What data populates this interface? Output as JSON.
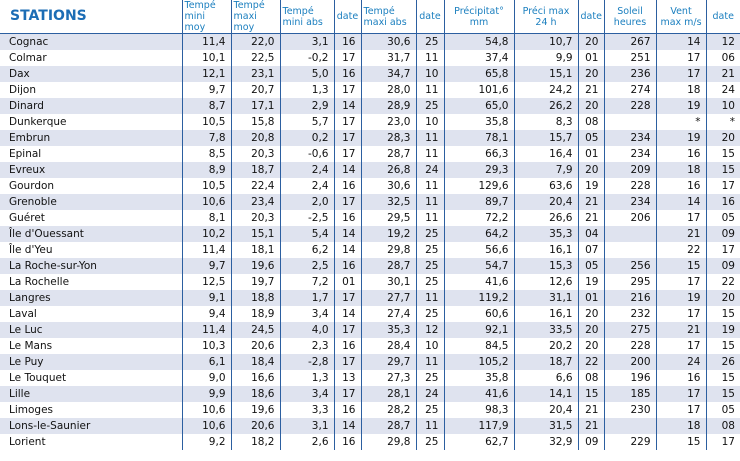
{
  "table": {
    "headers": [
      "STATIONS",
      "Tempé mini moy",
      "Tempé maxi moy",
      "Tempé mini abs",
      "date",
      "Tempé maxi abs",
      "date",
      "Précipitat° mm",
      "Préci max 24 h",
      "date",
      "Soleil heures",
      "Vent max m/s",
      "date"
    ],
    "rows": [
      [
        "Cognac",
        "11,4",
        "22,0",
        "3,1",
        "16",
        "30,6",
        "25",
        "54,8",
        "10,7",
        "20",
        "267",
        "14",
        "12"
      ],
      [
        "Colmar",
        "10,1",
        "22,5",
        "-0,2",
        "17",
        "31,7",
        "11",
        "37,4",
        "9,9",
        "01",
        "251",
        "17",
        "06"
      ],
      [
        "Dax",
        "12,1",
        "23,1",
        "5,0",
        "16",
        "34,7",
        "10",
        "65,8",
        "15,1",
        "20",
        "236",
        "17",
        "21"
      ],
      [
        "Dijon",
        "9,7",
        "20,7",
        "1,3",
        "17",
        "28,0",
        "11",
        "101,6",
        "24,2",
        "21",
        "274",
        "18",
        "24"
      ],
      [
        "Dinard",
        "8,7",
        "17,1",
        "2,9",
        "14",
        "28,9",
        "25",
        "65,0",
        "26,2",
        "20",
        "228",
        "19",
        "10"
      ],
      [
        "Dunkerque",
        "10,5",
        "15,8",
        "5,7",
        "17",
        "23,0",
        "10",
        "35,8",
        "8,3",
        "08",
        "",
        "*",
        "*"
      ],
      [
        "Embrun",
        "7,8",
        "20,8",
        "0,2",
        "17",
        "28,3",
        "11",
        "78,1",
        "15,7",
        "05",
        "234",
        "19",
        "20"
      ],
      [
        "Epinal",
        "8,5",
        "20,3",
        "-0,6",
        "17",
        "28,7",
        "11",
        "66,3",
        "16,4",
        "01",
        "234",
        "16",
        "15"
      ],
      [
        "Evreux",
        "8,9",
        "18,7",
        "2,4",
        "14",
        "26,8",
        "24",
        "29,3",
        "7,9",
        "20",
        "209",
        "18",
        "15"
      ],
      [
        "Gourdon",
        "10,5",
        "22,4",
        "2,4",
        "16",
        "30,6",
        "11",
        "129,6",
        "63,6",
        "19",
        "228",
        "16",
        "17"
      ],
      [
        "Grenoble",
        "10,6",
        "23,4",
        "2,0",
        "17",
        "32,5",
        "11",
        "89,7",
        "20,4",
        "21",
        "234",
        "14",
        "16"
      ],
      [
        "Guéret",
        "8,1",
        "20,3",
        "-2,5",
        "16",
        "29,5",
        "11",
        "72,2",
        "26,6",
        "21",
        "206",
        "17",
        "05"
      ],
      [
        "Île d'Ouessant",
        "10,2",
        "15,1",
        "5,4",
        "14",
        "19,2",
        "25",
        "64,2",
        "35,3",
        "04",
        "",
        "21",
        "09"
      ],
      [
        "Île d'Yeu",
        "11,4",
        "18,1",
        "6,2",
        "14",
        "29,8",
        "25",
        "56,6",
        "16,1",
        "07",
        "",
        "22",
        "17"
      ],
      [
        "La Roche-sur-Yon",
        "9,7",
        "19,6",
        "2,5",
        "16",
        "28,7",
        "25",
        "54,7",
        "15,3",
        "05",
        "256",
        "15",
        "09"
      ],
      [
        "La Rochelle",
        "12,5",
        "19,7",
        "7,2",
        "01",
        "30,1",
        "25",
        "41,6",
        "12,6",
        "19",
        "295",
        "17",
        "22"
      ],
      [
        "Langres",
        "9,1",
        "18,8",
        "1,7",
        "17",
        "27,7",
        "11",
        "119,2",
        "31,1",
        "01",
        "216",
        "19",
        "20"
      ],
      [
        "Laval",
        "9,4",
        "18,9",
        "3,4",
        "14",
        "27,4",
        "25",
        "60,6",
        "16,1",
        "20",
        "232",
        "17",
        "15"
      ],
      [
        "Le Luc",
        "11,4",
        "24,5",
        "4,0",
        "17",
        "35,3",
        "12",
        "92,1",
        "33,5",
        "20",
        "275",
        "21",
        "19"
      ],
      [
        "Le Mans",
        "10,3",
        "20,6",
        "2,3",
        "16",
        "28,4",
        "10",
        "84,5",
        "20,2",
        "20",
        "228",
        "17",
        "15"
      ],
      [
        "Le Puy",
        "6,1",
        "18,4",
        "-2,8",
        "17",
        "29,7",
        "11",
        "105,2",
        "18,7",
        "22",
        "200",
        "24",
        "26"
      ],
      [
        "Le Touquet",
        "9,0",
        "16,6",
        "1,3",
        "13",
        "27,3",
        "25",
        "35,8",
        "6,6",
        "08",
        "196",
        "16",
        "15"
      ],
      [
        "Lille",
        "9,9",
        "18,6",
        "3,4",
        "17",
        "28,1",
        "24",
        "41,6",
        "14,1",
        "15",
        "185",
        "17",
        "15"
      ],
      [
        "Limoges",
        "10,6",
        "19,6",
        "3,3",
        "16",
        "28,2",
        "25",
        "98,3",
        "20,4",
        "21",
        "230",
        "17",
        "05"
      ],
      [
        "Lons-le-Saunier",
        "10,6",
        "20,6",
        "3,1",
        "14",
        "28,7",
        "11",
        "117,9",
        "31,5",
        "21",
        "",
        "18",
        "08"
      ],
      [
        "Lorient",
        "9,2",
        "18,2",
        "2,6",
        "16",
        "29,8",
        "25",
        "62,7",
        "32,9",
        "09",
        "229",
        "15",
        "17"
      ]
    ]
  }
}
